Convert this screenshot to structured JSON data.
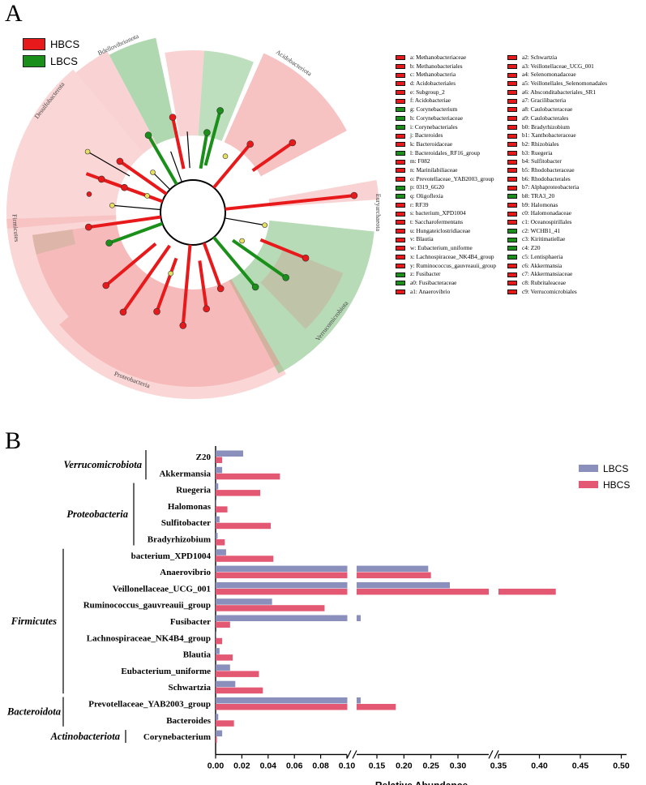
{
  "panel_a": {
    "letter": "A",
    "legend": [
      {
        "label": "HBCS",
        "color": "#e8191a"
      },
      {
        "label": "LBCS",
        "color": "#1a8f1a"
      }
    ],
    "phyla_labels": [
      "Desulfobacterota",
      "Bdellovibrionota",
      "Acidobacteriota",
      "Euryarchaeota",
      "Verrucomicrobiota",
      "Proteobacteria",
      "Firmicutes"
    ],
    "taxa_left": [
      {
        "label": "a: Methanobacteriaceae",
        "group": "HBCS"
      },
      {
        "label": "b: Methanobacteriales",
        "group": "HBCS"
      },
      {
        "label": "c: Methanobacteria",
        "group": "HBCS"
      },
      {
        "label": "d: Acidobacteriales",
        "group": "HBCS"
      },
      {
        "label": "e: Subgroup_2",
        "group": "HBCS"
      },
      {
        "label": "f: Acidobacteriae",
        "group": "HBCS"
      },
      {
        "label": "g: Corynebacterium",
        "group": "LBCS"
      },
      {
        "label": "h: Corynebacteriaceae",
        "group": "LBCS"
      },
      {
        "label": "i: Corynebacteriales",
        "group": "LBCS"
      },
      {
        "label": "j: Bacteroides",
        "group": "HBCS"
      },
      {
        "label": "k: Bacteroidaceae",
        "group": "HBCS"
      },
      {
        "label": "l: Bacteroidales_RF16_group",
        "group": "LBCS"
      },
      {
        "label": "m: F082",
        "group": "HBCS"
      },
      {
        "label": "n: Marinilabiliaceae",
        "group": "HBCS"
      },
      {
        "label": "o: Prevotellaceae_YAB2003_group",
        "group": "HBCS"
      },
      {
        "label": "p: 0319_6G20",
        "group": "LBCS"
      },
      {
        "label": "q: Oligoflexia",
        "group": "LBCS"
      },
      {
        "label": "r: RF39",
        "group": "HBCS"
      },
      {
        "label": "s: bacterium_XPD1004",
        "group": "HBCS"
      },
      {
        "label": "t: Saccharofermentans",
        "group": "HBCS"
      },
      {
        "label": "u: Hungateiclostridiaceae",
        "group": "HBCS"
      },
      {
        "label": "v: Blautia",
        "group": "HBCS"
      },
      {
        "label": "w: Eubacterium_uniforme",
        "group": "HBCS"
      },
      {
        "label": "x: Lachnospiraceae_NK4B4_group",
        "group": "HBCS"
      },
      {
        "label": "y: Ruminococcus_gauvreauii_group",
        "group": "HBCS"
      },
      {
        "label": "z: Fusibacter",
        "group": "LBCS"
      },
      {
        "label": "a0: Fusibacteraceae",
        "group": "LBCS"
      },
      {
        "label": "a1: Anaerovibrio",
        "group": "HBCS"
      }
    ],
    "taxa_right": [
      {
        "label": "a2: Schwartzia",
        "group": "HBCS"
      },
      {
        "label": "a3: Veillonellaceae_UCG_001",
        "group": "HBCS"
      },
      {
        "label": "a4: Selenomonadaceae",
        "group": "HBCS"
      },
      {
        "label": "a5: Veillonellales_Selenomonadales",
        "group": "HBCS"
      },
      {
        "label": "a6: Absconditabacteriales_SR1",
        "group": "HBCS"
      },
      {
        "label": "a7: Gracilibacteria",
        "group": "HBCS"
      },
      {
        "label": "a8: Caulobacteraceae",
        "group": "HBCS"
      },
      {
        "label": "a9: Caulobacterales",
        "group": "HBCS"
      },
      {
        "label": "b0: Bradyrhizobium",
        "group": "HBCS"
      },
      {
        "label": "b1: Xanthobacteraceae",
        "group": "HBCS"
      },
      {
        "label": "b2: Rhizobiales",
        "group": "HBCS"
      },
      {
        "label": "b3: Ruegeria",
        "group": "HBCS"
      },
      {
        "label": "b4: Sulfitobacter",
        "group": "HBCS"
      },
      {
        "label": "b5: Rhodobacteraceae",
        "group": "HBCS"
      },
      {
        "label": "b6: Rhodobacterales",
        "group": "HBCS"
      },
      {
        "label": "b7: Alphaproteobacteria",
        "group": "HBCS"
      },
      {
        "label": "b8: TRA3_20",
        "group": "LBCS"
      },
      {
        "label": "b9: Halomonas",
        "group": "HBCS"
      },
      {
        "label": "c0: Halomonadaceae",
        "group": "HBCS"
      },
      {
        "label": "c1: Oceanospirillales",
        "group": "HBCS"
      },
      {
        "label": "c2: WCHB1_41",
        "group": "LBCS"
      },
      {
        "label": "c3: Kiritimatiellae",
        "group": "LBCS"
      },
      {
        "label": "c4: Z20",
        "group": "LBCS"
      },
      {
        "label": "c5: Lentisphaeria",
        "group": "LBCS"
      },
      {
        "label": "c6: Akkermansia",
        "group": "HBCS"
      },
      {
        "label": "c7: Akkermansiaceae",
        "group": "HBCS"
      },
      {
        "label": "c8: Rubritaleaceae",
        "group": "HBCS"
      },
      {
        "label": "c9: Verrucomicrobiales",
        "group": "HBCS"
      }
    ]
  },
  "panel_b": {
    "letter": "B",
    "chart_data": {
      "type": "bar",
      "orientation": "horizontal",
      "xlabel": "Relative Abundance",
      "xlim": [
        0,
        0.5
      ],
      "axis_break": [
        [
          0.1,
          0.105
        ],
        [
          0.33,
          0.34
        ]
      ],
      "x_ticks": [
        "0.00",
        "0.02",
        "0.04",
        "0.06",
        "0.08",
        "0.10",
        "0.15",
        "0.20",
        "0.25",
        "0.30",
        "0.35",
        "0.40",
        "0.45",
        "0.50"
      ],
      "categories": [
        "Z20",
        "Akkermansia",
        "Ruegeria",
        "Halomonas",
        "Sulfitobacter",
        "Bradyrhizobium",
        "bacterium_XPD1004",
        "Anaerovibrio",
        "Veillonellaceae_UCG_001",
        "Ruminococcus_gauvreauii_group",
        "Fusibacter",
        "Lachnospiraceae_NK4B4_group",
        "Blautia",
        "Eubacterium_uniforme",
        "Schwartzia",
        "Prevotellaceae_YAB2003_group",
        "Bacteroides",
        "Corynebacterium"
      ],
      "groups": [
        {
          "name": "Verrucomicrobiota",
          "members": [
            "Z20",
            "Akkermansia"
          ]
        },
        {
          "name": "Proteobacteria",
          "members": [
            "Ruegeria",
            "Halomonas",
            "Sulfitobacter",
            "Bradyrhizobium"
          ]
        },
        {
          "name": "Firmicutes",
          "members": [
            "bacterium_XPD1004",
            "Anaerovibrio",
            "Veillonellaceae_UCG_001",
            "Ruminococcus_gauvreauii_group",
            "Fusibacter",
            "Lachnospiraceae_NK4B4_group",
            "Blautia",
            "Eubacterium_uniforme",
            "Schwartzia"
          ]
        },
        {
          "name": "Bacteroidota",
          "members": [
            "Prevotellaceae_YAB2003_group",
            "Bacteroides"
          ]
        },
        {
          "name": "Actinobacteriota",
          "members": [
            "Corynebacterium"
          ]
        }
      ],
      "series": [
        {
          "name": "LBCS",
          "color": "#8b8fbb",
          "values": [
            0.021,
            0.005,
            0.002,
            0.0005,
            0.003,
            0.0015,
            0.008,
            0.245,
            0.285,
            0.043,
            0.12,
            0.0005,
            0.003,
            0.011,
            0.015,
            0.12,
            0.002,
            0.005
          ]
        },
        {
          "name": "HBCS",
          "color": "#e35872",
          "values": [
            0.005,
            0.049,
            0.034,
            0.009,
            0.042,
            0.007,
            0.044,
            0.25,
            0.42,
            0.083,
            0.011,
            0.005,
            0.013,
            0.033,
            0.036,
            0.185,
            0.014,
            0.001
          ]
        }
      ],
      "legend_position": "top-right"
    }
  }
}
